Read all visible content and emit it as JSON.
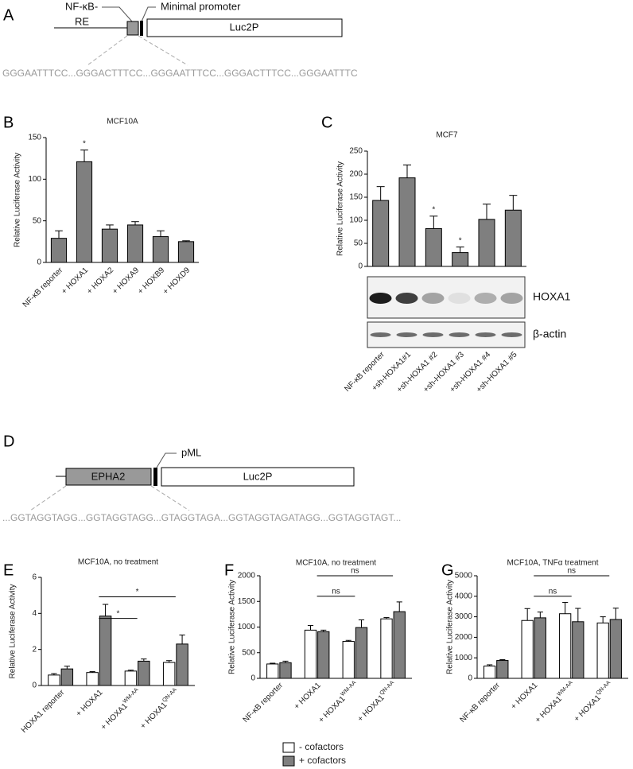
{
  "panel_a": {
    "letter": "A",
    "re_label": [
      "NF-κB-",
      "RE"
    ],
    "promoter_label": "Minimal promoter",
    "gene": "Luc2P",
    "sequence": "GGGAATTTCC...GGGACTTTCC...GGGAATTTCC...GGGACTTTCC...GGGAATTTC"
  },
  "panel_d": {
    "letter": "D",
    "box": "EPHA2",
    "promoter_label": "pML",
    "gene": "Luc2P",
    "sequence": "...GGTAGGTAGG...GGTAGGTAGG...GTAGGTAGA...GGTAGGTAGATAGG...GGTAGGTAGT..."
  },
  "blot": {
    "bands": [
      "HOXA1",
      "β-actin"
    ]
  },
  "chart_data": [
    {
      "type": "bar",
      "letter": "B",
      "title": "MCF10A",
      "y_label": "Relative Luciferase Activity",
      "color": "#7f7f7f",
      "categories": [
        "NF-κB reporter",
        "+ HOXA1",
        "+ HOXA2",
        "+ HOXA9",
        "+ HOXB9",
        "+ HOXD9"
      ],
      "values": [
        29,
        121,
        40,
        45,
        31,
        25
      ],
      "errors": [
        9,
        14,
        5,
        4,
        7,
        1
      ],
      "ylim": [
        0,
        150
      ],
      "yticks": [
        0,
        50,
        100,
        150
      ],
      "annotations": [
        {
          "index": 1,
          "text": "*"
        }
      ]
    },
    {
      "type": "bar",
      "letter": "C",
      "title": "MCF7",
      "y_label": "Relative Luciferase Activity",
      "color": "#7f7f7f",
      "categories": [
        "NF-κB reporter",
        "+sh-HOXA1#1",
        "+sh-HOXA1 #2",
        "+sh-HOXA1 #3",
        "+sh-HOXA1 #4",
        "+sh-HOXA1 #5"
      ],
      "values": [
        143,
        192,
        82,
        30,
        102,
        122
      ],
      "errors": [
        30,
        28,
        27,
        12,
        33,
        32
      ],
      "ylim": [
        0,
        250
      ],
      "yticks": [
        0,
        50,
        100,
        150,
        200,
        250
      ],
      "annotations": [
        {
          "index": 2,
          "text": "*"
        },
        {
          "index": 3,
          "text": "*"
        }
      ]
    },
    {
      "type": "grouped-bar",
      "letter": "E",
      "title": "MCF10A, no treatment",
      "y_label": "Relative Luciferase Activity",
      "categories": [
        "HOXA1 reporter",
        "+ HOXA1",
        "+ HOXA1",
        "+ HOXA1"
      ],
      "category_superscripts": [
        null,
        null,
        "WM-AA",
        "QN-AA"
      ],
      "series": [
        {
          "name": "- cofactors",
          "color": "#ffffff",
          "values": [
            0.58,
            0.72,
            0.8,
            1.28
          ],
          "errors": [
            0.08,
            0.05,
            0.05,
            0.1
          ]
        },
        {
          "name": "+ cofactors",
          "color": "#7f7f7f",
          "values": [
            0.92,
            3.85,
            1.35,
            2.3
          ],
          "errors": [
            0.15,
            0.65,
            0.12,
            0.5
          ]
        }
      ],
      "ylim": [
        0,
        6
      ],
      "yticks": [
        0,
        2,
        4,
        6
      ],
      "brackets": [
        {
          "from": 1,
          "to": 2,
          "text": "*"
        },
        {
          "from": 1,
          "to": 3,
          "text": "*"
        }
      ]
    },
    {
      "type": "grouped-bar",
      "letter": "F",
      "title": "MCF10A, no treatment",
      "y_label": "Relative Luciferase Activity",
      "categories": [
        "NF-κB reporter",
        "+ HOXA1",
        "+ HOXA1",
        "+ HOXA1"
      ],
      "category_superscripts": [
        null,
        null,
        "WM-AA",
        "QN-AA"
      ],
      "series": [
        {
          "color": "#ffffff",
          "values": [
            280,
            940,
            720,
            1160
          ],
          "errors": [
            15,
            90,
            20,
            25
          ]
        },
        {
          "color": "#7f7f7f",
          "values": [
            305,
            910,
            990,
            1300
          ],
          "errors": [
            30,
            30,
            150,
            190
          ]
        }
      ],
      "ylim": [
        0,
        2000
      ],
      "yticks": [
        0,
        500,
        1000,
        1500,
        2000
      ],
      "brackets": [
        {
          "from": 1,
          "to": 2,
          "text": "ns"
        },
        {
          "from": 1,
          "to": 3,
          "text": "ns"
        }
      ]
    },
    {
      "type": "grouped-bar",
      "letter": "G",
      "title": "MCF10A, TNFα treatment",
      "y_label": "Relative Luciferase Activity",
      "categories": [
        "NF-κB reporter",
        "+ HOXA1",
        "+ HOXA1",
        "+ HOXA1"
      ],
      "category_superscripts": [
        null,
        null,
        "WM-AA",
        "QN-AA"
      ],
      "series": [
        {
          "color": "#ffffff",
          "values": [
            600,
            2820,
            3150,
            2700
          ],
          "errors": [
            60,
            580,
            550,
            300
          ]
        },
        {
          "color": "#7f7f7f",
          "values": [
            870,
            2950,
            2760,
            2870
          ],
          "errors": [
            40,
            280,
            650,
            550
          ]
        }
      ],
      "ylim": [
        0,
        5000
      ],
      "yticks": [
        0,
        1000,
        2000,
        3000,
        4000,
        5000
      ],
      "brackets": [
        {
          "from": 1,
          "to": 2,
          "text": "ns"
        },
        {
          "from": 1,
          "to": 3,
          "text": "ns"
        }
      ]
    }
  ]
}
